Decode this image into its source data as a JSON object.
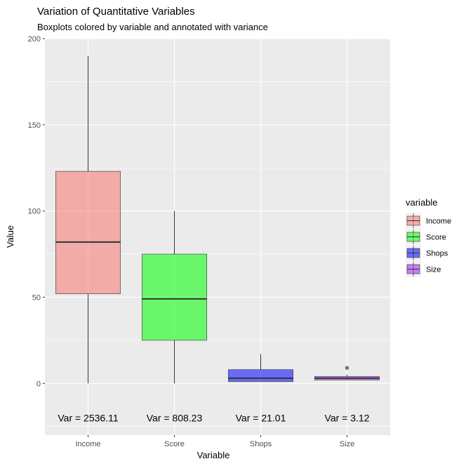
{
  "chart_data": {
    "type": "boxplot",
    "title": "Variation of Quantitative Variables",
    "subtitle": "Boxplots colored by variable and annotated with variance",
    "xlabel": "Variable",
    "ylabel": "Value",
    "ylim": [
      -30,
      200
    ],
    "yticks": [
      0,
      50,
      100,
      150,
      200
    ],
    "grid": true,
    "legend": {
      "title": "variable",
      "position": "right"
    },
    "categories": [
      "Income",
      "Score",
      "Shops",
      "Size"
    ],
    "colors": [
      "#F8766D",
      "#7CAE00",
      "#00BFC4",
      "#C77CFF"
    ],
    "fills": [
      "#F8766D",
      "#00FF00",
      "#0000FF",
      "#A020F0"
    ],
    "boxes": [
      {
        "name": "Income",
        "min": 0,
        "q1": 52,
        "median": 82,
        "q3": 123,
        "max": 190,
        "outliers": []
      },
      {
        "name": "Score",
        "min": 0,
        "q1": 25,
        "median": 49,
        "q3": 75,
        "max": 100,
        "outliers": []
      },
      {
        "name": "Shops",
        "min": 1,
        "q1": 1,
        "median": 3,
        "q3": 8,
        "max": 17,
        "outliers": []
      },
      {
        "name": "Size",
        "min": 2,
        "q1": 2,
        "median": 3,
        "q3": 4,
        "max": 5,
        "outliers": [
          9
        ]
      }
    ],
    "annotations": [
      {
        "category": "Income",
        "y": -20,
        "label": "Var = 2536.11"
      },
      {
        "category": "Score",
        "y": -20,
        "label": "Var = 808.23"
      },
      {
        "category": "Shops",
        "y": -20,
        "label": "Var = 21.01"
      },
      {
        "category": "Size",
        "y": -20,
        "label": "Var = 3.12"
      }
    ]
  }
}
